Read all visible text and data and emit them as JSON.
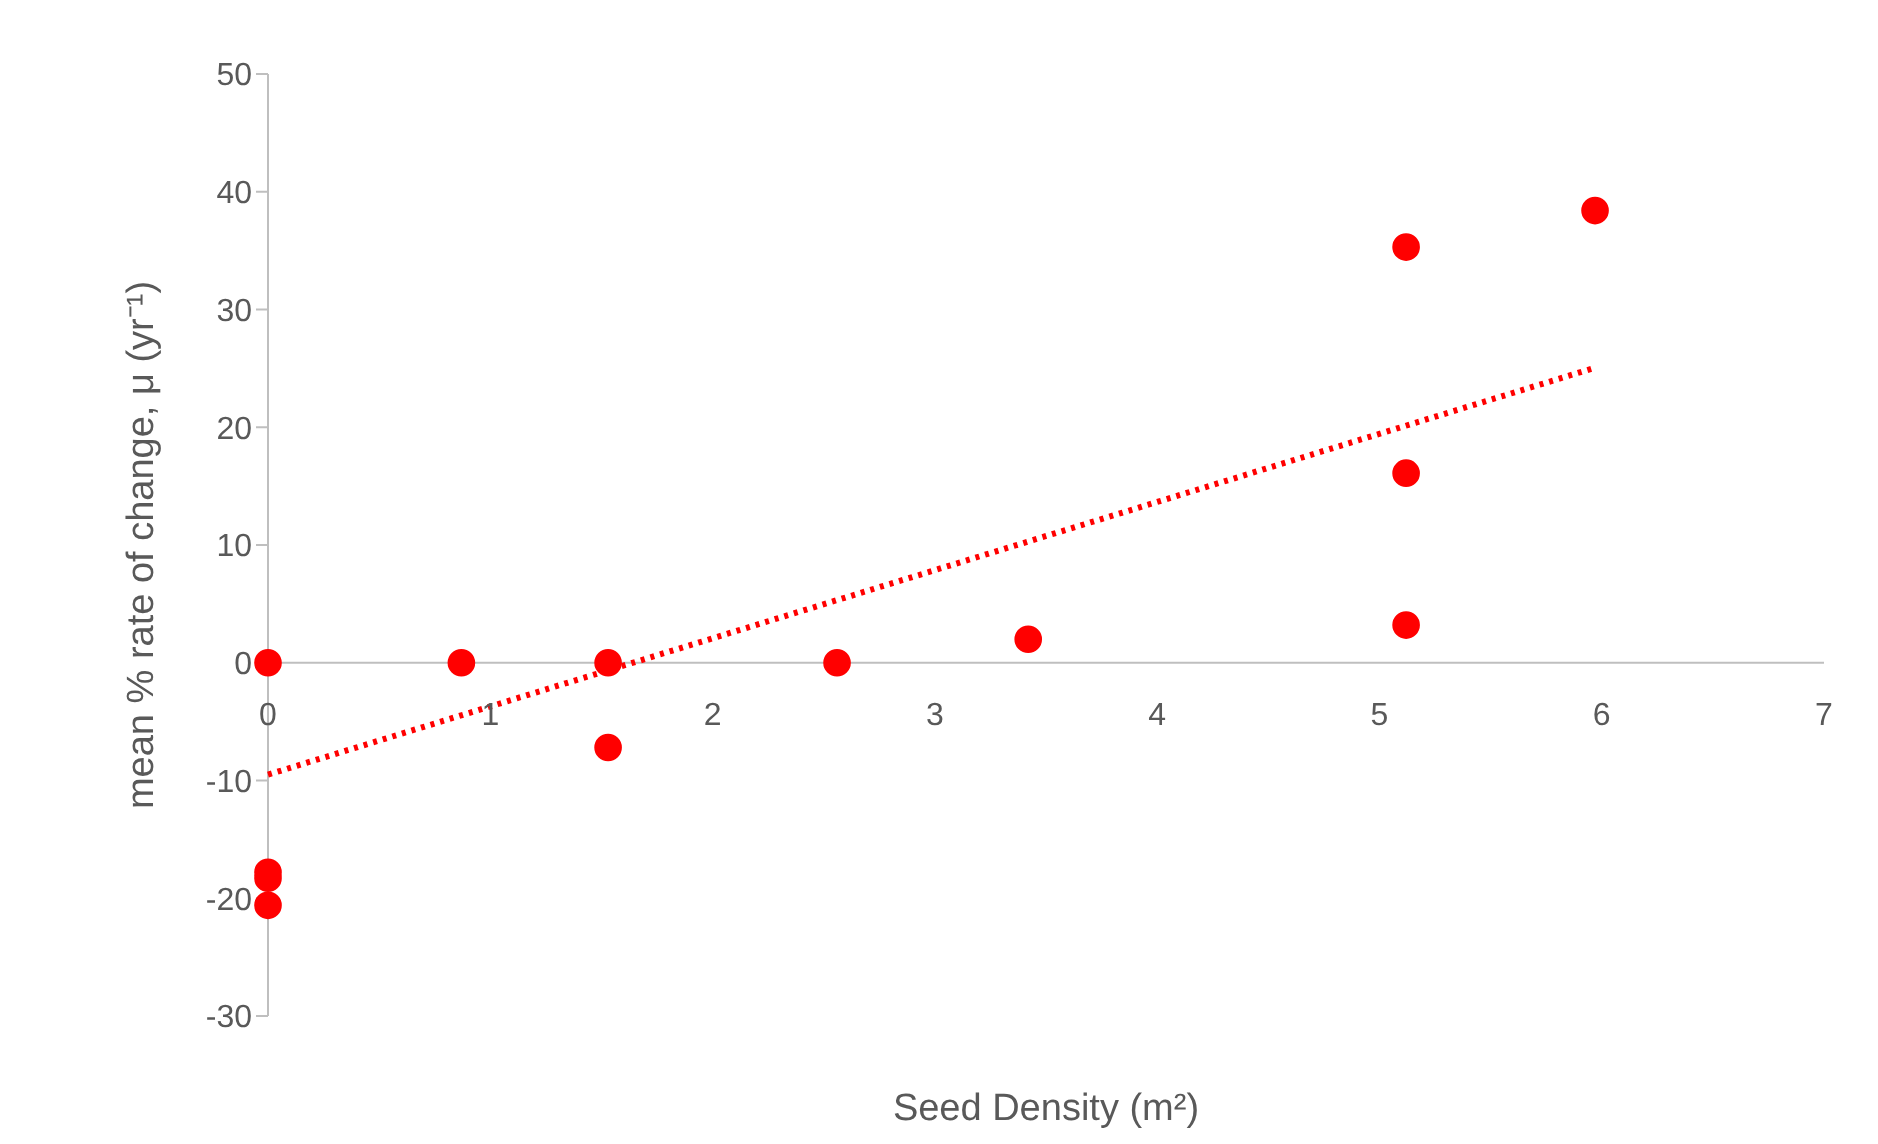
{
  "chart_data": {
    "type": "scatter",
    "xlabel": "Seed Density (m²)",
    "ylabel": "mean % rate of change, μ (yr⁻¹)",
    "xlim": [
      0,
      7
    ],
    "xticks": [
      0,
      1,
      2,
      3,
      4,
      5,
      6,
      7
    ],
    "ylim": [
      -30,
      50
    ],
    "yticks": [
      -30,
      -20,
      -10,
      0,
      10,
      20,
      30,
      40,
      50
    ],
    "grid": false,
    "legend": false,
    "marker": "circle",
    "series": [
      {
        "color": "#ff0000",
        "x": [
          0,
          0,
          0,
          0,
          0.87,
          1.53,
          1.53,
          2.56,
          3.42,
          5.12,
          5.12,
          5.12,
          5.97
        ],
        "values": [
          0,
          -17.8,
          -18.3,
          -20.6,
          0,
          0,
          -7.2,
          0,
          2,
          35.3,
          16.1,
          3.2,
          38.4
        ]
      },
      {
        "type": "line",
        "color": "#ff0000",
        "line_style": "dotted",
        "marker": "none",
        "x": [
          0,
          5.96
        ],
        "values": [
          -9.5,
          25
        ]
      }
    ]
  }
}
